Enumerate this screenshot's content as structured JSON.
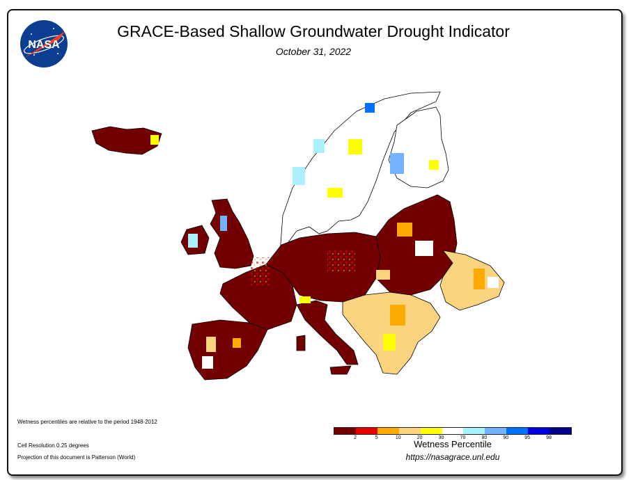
{
  "header": {
    "logo_text": "NASA",
    "title": "GRACE-Based Shallow Groundwater Drought Indicator",
    "date": "October 31, 2022"
  },
  "notes": {
    "period": "Wetness percentiles are relative to the period 1948-2012",
    "resolution": "Cell Resolution 0.25 degrees",
    "projection": "Projection of this document is Patterson (World)"
  },
  "legend": {
    "title": "Wetness Percentile",
    "url": "https://nasagrace.unl.edu",
    "ticks": [
      "2",
      "5",
      "10",
      "20",
      "30",
      "70",
      "80",
      "90",
      "95",
      "98"
    ],
    "colors": [
      "#730000",
      "#e60000",
      "#ffaa00",
      "#fcd37f",
      "#ffff00",
      "#ffffff",
      "#aaf0ff",
      "#73b2ff",
      "#0070ff",
      "#0000e0",
      "#00008b"
    ]
  },
  "map": {
    "region": "Europe",
    "areas": [
      {
        "name": "iceland",
        "color": "#730000"
      },
      {
        "name": "scandinavia",
        "color": "#ffffff"
      },
      {
        "name": "finland",
        "color": "#ffffff"
      },
      {
        "name": "british-isles",
        "color": "#730000"
      },
      {
        "name": "iberia",
        "color": "#730000"
      },
      {
        "name": "france",
        "color": "#730000"
      },
      {
        "name": "central-europe",
        "color": "#730000"
      },
      {
        "name": "italy",
        "color": "#730000"
      },
      {
        "name": "balkans",
        "color": "#fcd37f"
      },
      {
        "name": "eastern-europe",
        "color": "#730000"
      },
      {
        "name": "ukraine-east",
        "color": "#fcd37f"
      }
    ]
  }
}
